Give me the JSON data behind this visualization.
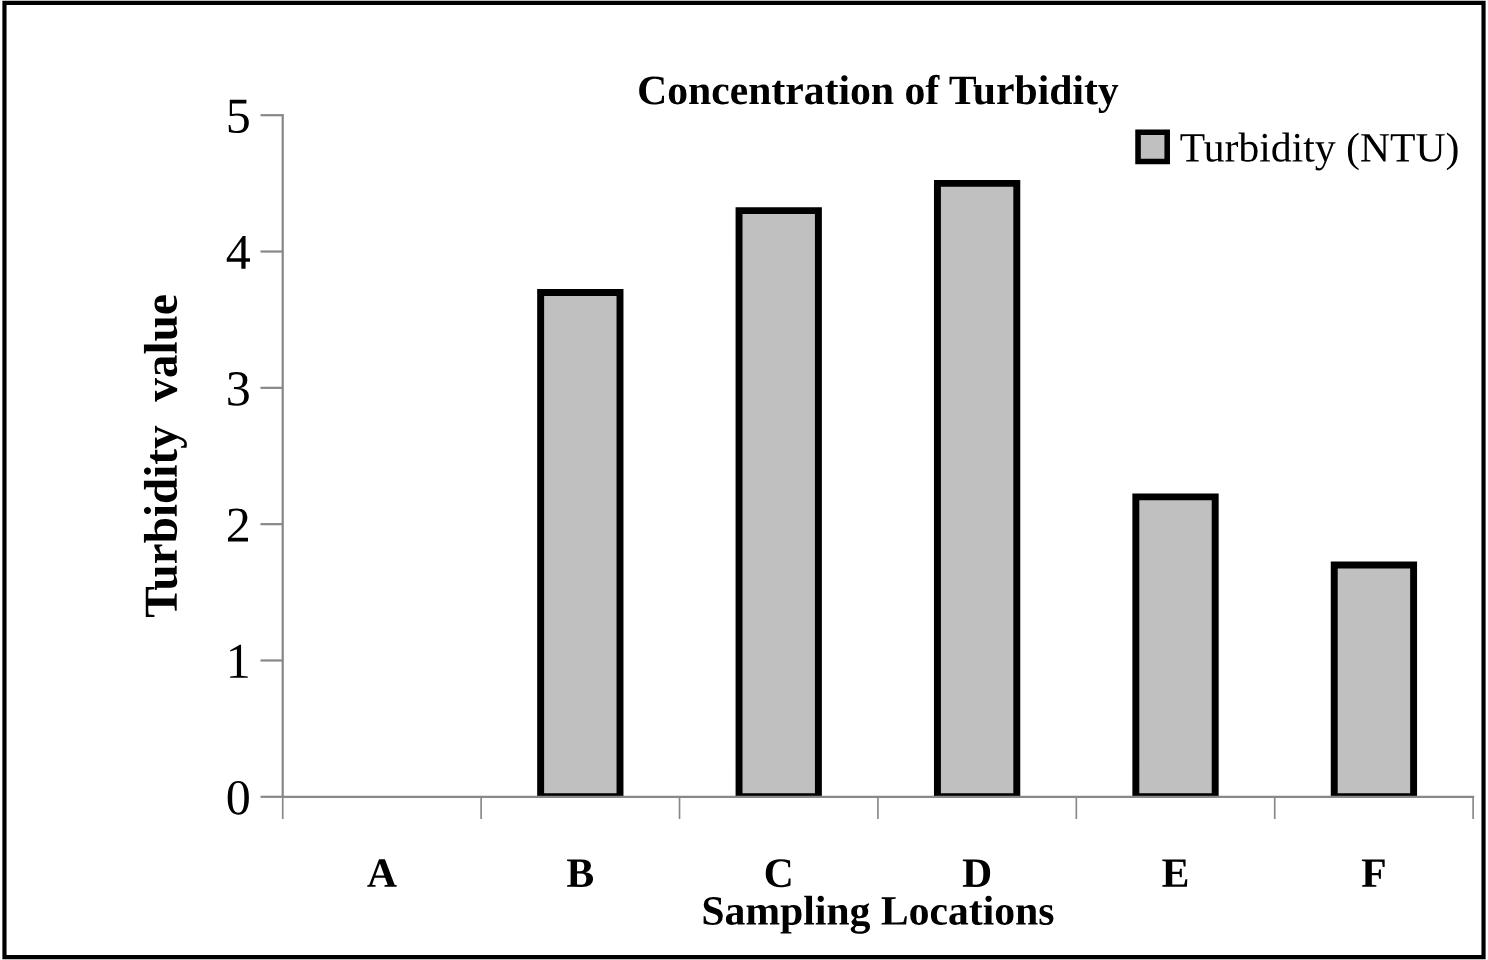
{
  "chart_data": {
    "type": "bar",
    "title": "Concentration of Turbidity",
    "xlabel": "Sampling Locations",
    "ylabel": "Turbidity  value",
    "categories": [
      "A",
      "B",
      "C",
      "D",
      "E",
      "F"
    ],
    "series": [
      {
        "name": "Turbidity (NTU)",
        "color": "#c0c0c0",
        "values": [
          0,
          3.7,
          4.3,
          4.5,
          2.2,
          1.7
        ]
      }
    ],
    "ylim": [
      0,
      5
    ],
    "yticks": [
      0,
      1,
      2,
      3,
      4,
      5
    ],
    "grid": false,
    "legend": "top right"
  }
}
